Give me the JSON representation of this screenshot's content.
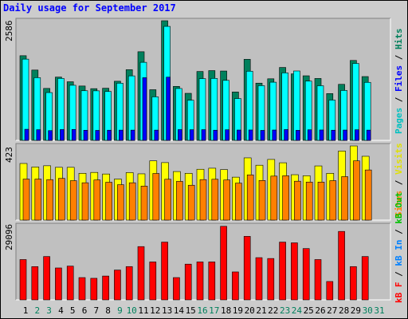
{
  "title": "Daily usage for September 2017",
  "colors": {
    "pages": "#00805c",
    "files": "#0000ff",
    "hits": "#00ffff",
    "sites": "#ff8000",
    "visits": "#ffff00",
    "kb_in": "#0080ff",
    "kb_out": "#00c000",
    "kb_f": "#ff0000",
    "text_pages": "#00ffff",
    "text_files": "#0000ff",
    "text_hits": "#00805c",
    "text_sites": "#ff8000",
    "text_visits": "#ffff00",
    "text_kbf": "#ff0000",
    "text_kbin": "#0080ff",
    "text_kbout": "#00c000",
    "day_weekday": "#000000",
    "day_weekend": "#00805c"
  },
  "legends": {
    "top": [
      {
        "text": "Pages",
        "color": "#00c0c0"
      },
      {
        "text": " / ",
        "color": "#000000"
      },
      {
        "text": "Files",
        "color": "#0000ff"
      },
      {
        "text": " / ",
        "color": "#000000"
      },
      {
        "text": "Hits",
        "color": "#00805c"
      }
    ],
    "middle": [
      {
        "text": "Sites",
        "color": "#ff8000"
      },
      {
        "text": " / ",
        "color": "#000000"
      },
      {
        "text": "Visits",
        "color": "#e0e000"
      }
    ],
    "bottom": [
      {
        "text": "kB F",
        "color": "#ff0000"
      },
      {
        "text": " / ",
        "color": "#000000"
      },
      {
        "text": "kB In",
        "color": "#0080ff"
      },
      {
        "text": " / ",
        "color": "#000000"
      },
      {
        "text": "kB Out",
        "color": "#00c000"
      }
    ]
  },
  "chart_data": {
    "type": "bar",
    "title": "Daily usage for September 2017",
    "categories": [
      "1",
      "2",
      "3",
      "4",
      "5",
      "6",
      "7",
      "8",
      "9",
      "10",
      "11",
      "12",
      "13",
      "14",
      "15",
      "16",
      "17",
      "18",
      "19",
      "20",
      "21",
      "22",
      "23",
      "24",
      "25",
      "26",
      "27",
      "28",
      "29",
      "30",
      "31"
    ],
    "weekend_days": [
      "2",
      "3",
      "9",
      "10",
      "16",
      "17",
      "23",
      "24",
      "30",
      "31"
    ],
    "panels": [
      {
        "id": "hits-files-pages",
        "max_label": "2586",
        "ylim": [
          0,
          2586
        ],
        "series": [
          {
            "name": "Hits",
            "values": [
              1830,
              1520,
              1123,
              1368,
              1267,
              1175,
              1118,
              1127,
              1278,
              1528,
              1916,
              1095,
              2586,
              1167,
              1017,
              1489,
              1508,
              1499,
              1046,
              1752,
              1237,
              1331,
              1576,
              1438,
              1396,
              1338,
              1011,
              1211,
              1728,
              1379,
              0
            ]
          },
          {
            "name": "Files",
            "values": [
              1756,
              1355,
              1033,
              1339,
              1191,
              1073,
              1071,
              1057,
              1236,
              1394,
              1687,
              941,
              2464,
              1121,
              868,
              1335,
              1339,
              1297,
              904,
              1495,
              1183,
              1257,
              1459,
              1500,
              1281,
              1181,
              871,
              1079,
              1663,
              1254,
              0
            ]
          },
          {
            "name": "Pages",
            "values": [
              240,
              231,
              211,
              234,
              236,
              219,
              216,
              220,
              222,
              222,
              1355,
              222,
              1367,
              233,
              231,
              232,
              220,
              230,
              224,
              225,
              216,
              224,
              234,
              218,
              229,
              225,
              220,
              223,
              230,
              222,
              0
            ]
          }
        ]
      },
      {
        "id": "visits-sites",
        "max_label": "423",
        "ylim": [
          0,
          423
        ],
        "series": [
          {
            "name": "Visits",
            "values": [
              323,
              303,
              310,
              301,
              301,
              267,
              272,
              263,
              234,
              271,
              264,
              338,
              328,
              277,
              267,
              290,
              296,
              288,
              245,
              355,
              313,
              346,
              327,
              259,
              253,
              309,
              267,
              394,
              423,
              364,
              0
            ]
          },
          {
            "name": "Sites",
            "values": [
              234,
              234,
              231,
              238,
              225,
              213,
              229,
              216,
              202,
              213,
              194,
              266,
              233,
              221,
              199,
              231,
              233,
              229,
              211,
              258,
              226,
              251,
              253,
              222,
              217,
              217,
              225,
              248,
              338,
              286,
              0
            ]
          }
        ]
      },
      {
        "id": "kbytes",
        "max_label": "29096",
        "ylim": [
          0,
          29096
        ],
        "series": [
          {
            "name": "kB F",
            "values": [
              15813,
              13046,
              17002,
              12519,
              13239,
              8744,
              8463,
              9350,
              11700,
              13057,
              20899,
              14877,
              22663,
              8744,
              14016,
              14877,
              14877,
              28860,
              10963,
              24915,
              16565,
              16225,
              22663,
              22376,
              20127,
              15813,
              7208,
              26852,
              13057,
              17002,
              0
            ]
          },
          {
            "name": "kB In",
            "values": [
              0,
              0,
              0,
              0,
              0,
              0,
              0,
              0,
              0,
              0,
              0,
              0,
              0,
              0,
              0,
              0,
              0,
              0,
              0,
              0,
              0,
              0,
              0,
              0,
              0,
              0,
              0,
              0,
              0,
              0,
              0
            ]
          },
          {
            "name": "kB Out",
            "values": [
              0,
              0,
              0,
              0,
              0,
              0,
              0,
              0,
              0,
              0,
              0,
              0,
              0,
              0,
              0,
              0,
              0,
              0,
              0,
              0,
              0,
              0,
              0,
              0,
              0,
              0,
              0,
              0,
              0,
              0,
              0
            ]
          }
        ]
      }
    ]
  }
}
